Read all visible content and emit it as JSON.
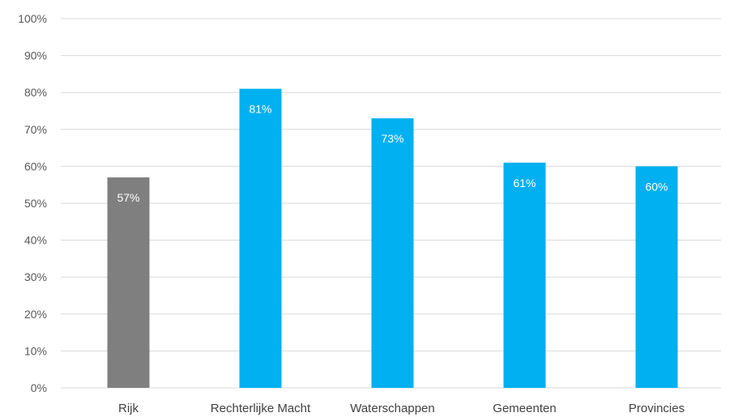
{
  "chart_data": {
    "type": "bar",
    "title": "",
    "xlabel": "",
    "ylabel": "",
    "categories": [
      "Rijk",
      "Rechterlijke Macht",
      "Waterschappen",
      "Gemeenten",
      "Provincies"
    ],
    "values": [
      57,
      81,
      73,
      61,
      60
    ],
    "data_labels": [
      "57%",
      "81%",
      "73%",
      "61%",
      "60%"
    ],
    "bar_colors": [
      "#7f7f7f",
      "#00b0f0",
      "#00b0f0",
      "#00b0f0",
      "#00b0f0"
    ],
    "ylim": [
      0,
      100
    ],
    "y_ticks": [
      "0%",
      "10%",
      "20%",
      "30%",
      "40%",
      "50%",
      "60%",
      "70%",
      "80%",
      "90%",
      "100%"
    ],
    "grid": true,
    "legend": "none"
  }
}
